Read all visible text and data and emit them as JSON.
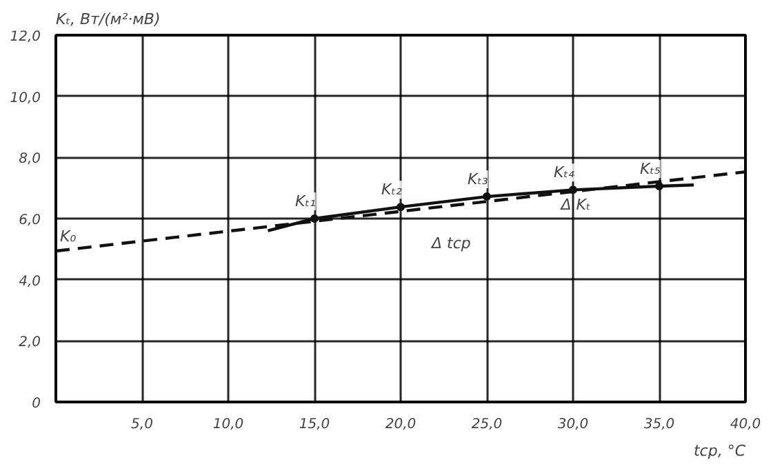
{
  "chart_data": {
    "type": "line",
    "xlabel": "tср, °C",
    "ylabel": "Kₜ, Вт/(м²·мВ)",
    "xlim": [
      0,
      40
    ],
    "ylim": [
      0,
      12
    ],
    "xticks": [
      {
        "value": 0,
        "label": null
      },
      {
        "value": 5,
        "label": "5,0"
      },
      {
        "value": 10,
        "label": "10,0"
      },
      {
        "value": 15,
        "label": "15,0"
      },
      {
        "value": 20,
        "label": "20,0"
      },
      {
        "value": 25,
        "label": "25,0"
      },
      {
        "value": 30,
        "label": "30,0"
      },
      {
        "value": 35,
        "label": "35,0"
      },
      {
        "value": 40,
        "label": "40,0"
      }
    ],
    "yticks": [
      0,
      {
        "value": 2,
        "label": "2,0"
      },
      {
        "value": 4,
        "label": "4,0"
      },
      {
        "value": 6,
        "label": "6,0"
      },
      {
        "value": 8,
        "label": "8,0"
      },
      {
        "value": 10,
        "label": "10,0"
      },
      {
        "value": 12,
        "label": "12,0"
      }
    ],
    "grid": true,
    "series": [
      {
        "color": "#111111",
        "line_style": "solid",
        "marker": "none",
        "x": [
          12.3,
          15,
          20,
          25,
          30,
          35,
          37
        ],
        "values": [
          5.6,
          6.0,
          6.38,
          6.72,
          6.94,
          7.06,
          7.1
        ]
      },
      {
        "type": "scatter",
        "color": "#111111",
        "marker": "circle",
        "x": [
          15,
          20,
          25,
          30,
          35
        ],
        "values": [
          6.0,
          6.38,
          6.72,
          6.94,
          7.06
        ]
      },
      {
        "color": "#111111",
        "line_style": "dashed",
        "marker": "none",
        "x": [
          0,
          40
        ],
        "values": [
          4.94,
          7.53
        ]
      }
    ],
    "annotations": [
      {
        "text": "K₀",
        "x": 0,
        "y": 4.94
      },
      {
        "text": "Kₜ₁",
        "x": 15,
        "y": 6.0
      },
      {
        "text": "Kₜ₂",
        "x": 20,
        "y": 6.38
      },
      {
        "text": "Kₜ₃",
        "x": 25,
        "y": 6.72
      },
      {
        "text": "Kₜ₄",
        "x": 30,
        "y": 6.94
      },
      {
        "text": "Kₜ₅",
        "x": 35,
        "y": 7.06
      },
      "Δ Kₜ",
      "Δ tср"
    ]
  }
}
